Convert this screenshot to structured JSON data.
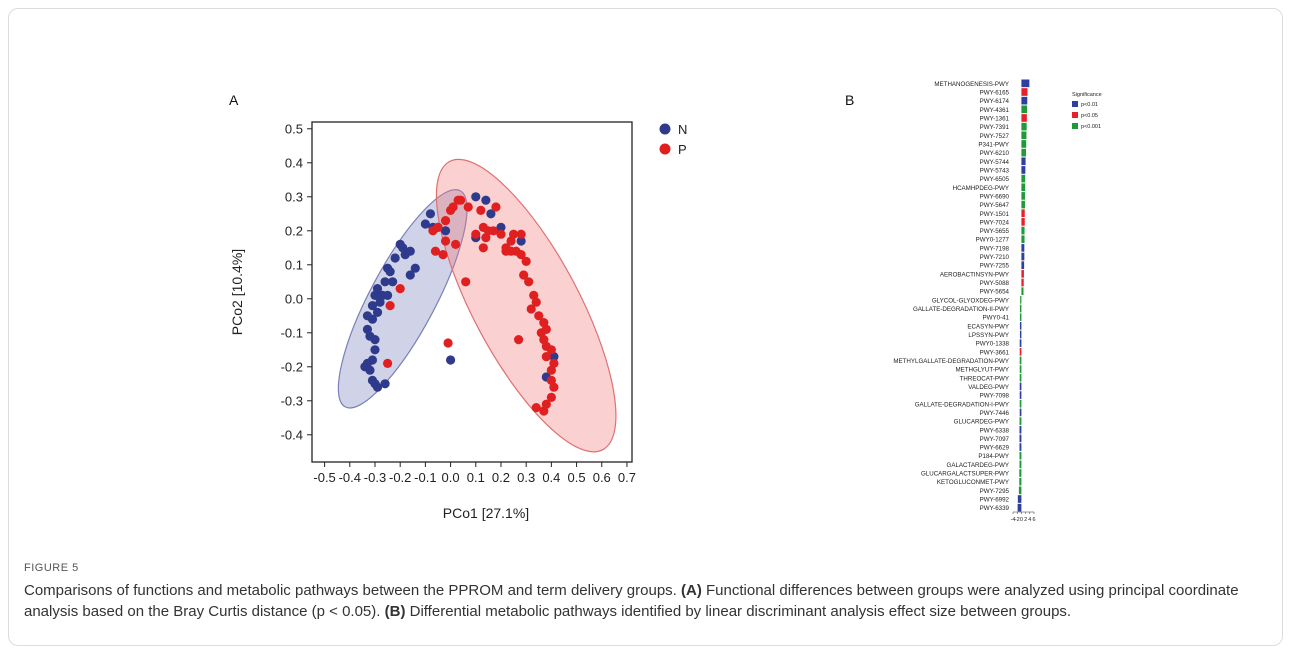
{
  "panels": {
    "a": "A",
    "b": "B"
  },
  "caption": {
    "label": "FIGURE 5",
    "sentence1": "Comparisons of functions and metabolic pathways between the PPROM and term delivery groups.",
    "a_marker": "(A)",
    "a_text": "Functional differences between groups were analyzed using principal coordinate analysis based on the Bray Curtis distance (p < 0.05).",
    "b_marker": "(B)",
    "b_text": "Differential metabolic pathways identified by linear discriminant analysis effect size between groups."
  },
  "chart_data": [
    {
      "type": "scatter",
      "title": "",
      "xlabel": "PCo1 [27.1%]",
      "ylabel": "PCo2 [10.4%]",
      "xlim": [
        -0.55,
        0.72
      ],
      "ylim": [
        -0.48,
        0.52
      ],
      "xticks": [
        -0.5,
        -0.4,
        -0.3,
        -0.2,
        -0.1,
        0.0,
        0.1,
        0.2,
        0.3,
        0.4,
        0.5,
        0.6,
        0.7
      ],
      "xtick_labels": [
        "-0.5",
        "-0.4",
        "-0.3",
        "-0.2",
        "-0.1",
        "0.0",
        "0.1",
        "0.2",
        "0.3",
        "0.4",
        "0.5",
        "0.6",
        "0.7"
      ],
      "yticks": [
        0.5,
        0.4,
        0.3,
        0.2,
        0.1,
        0.0,
        -0.1,
        -0.2,
        -0.3,
        -0.4
      ],
      "ytick_labels": [
        "0.5",
        "0.4",
        "0.3",
        "0.2",
        "0.1",
        "0.0",
        "-0.1",
        "-0.2",
        "-0.3",
        "-0.4"
      ],
      "legend_position": "top-right",
      "grid": false,
      "series": [
        {
          "name": "N",
          "color": "#2e3a8c",
          "ellipse": {
            "cx": -0.19,
            "cy": 0.0,
            "rx": 0.13,
            "ry": 0.36,
            "angle": 28,
            "fill": "rgba(120,130,185,0.35)",
            "stroke": "#7a80b8"
          },
          "points": [
            [
              -0.08,
              0.25
            ],
            [
              -0.1,
              0.22
            ],
            [
              -0.07,
              0.21
            ],
            [
              -0.05,
              0.21
            ],
            [
              -0.02,
              0.2
            ],
            [
              0.1,
              0.3
            ],
            [
              0.14,
              0.29
            ],
            [
              0.16,
              0.25
            ],
            [
              0.1,
              0.18
            ],
            [
              0.2,
              0.21
            ],
            [
              0.28,
              0.17
            ],
            [
              -0.2,
              0.16
            ],
            [
              -0.19,
              0.15
            ],
            [
              -0.18,
              0.13
            ],
            [
              -0.16,
              0.14
            ],
            [
              -0.22,
              0.12
            ],
            [
              -0.14,
              0.09
            ],
            [
              -0.16,
              0.07
            ],
            [
              -0.25,
              0.09
            ],
            [
              -0.24,
              0.08
            ],
            [
              -0.26,
              0.05
            ],
            [
              -0.23,
              0.05
            ],
            [
              -0.29,
              0.03
            ],
            [
              -0.3,
              0.01
            ],
            [
              -0.27,
              0.01
            ],
            [
              -0.25,
              0.01
            ],
            [
              -0.28,
              -0.01
            ],
            [
              -0.31,
              -0.02
            ],
            [
              -0.29,
              -0.04
            ],
            [
              -0.33,
              -0.05
            ],
            [
              -0.31,
              -0.06
            ],
            [
              -0.33,
              -0.09
            ],
            [
              -0.32,
              -0.11
            ],
            [
              -0.3,
              -0.12
            ],
            [
              -0.3,
              -0.15
            ],
            [
              -0.31,
              -0.18
            ],
            [
              -0.33,
              -0.19
            ],
            [
              -0.34,
              -0.2
            ],
            [
              -0.32,
              -0.21
            ],
            [
              -0.31,
              -0.24
            ],
            [
              -0.3,
              -0.25
            ],
            [
              -0.29,
              -0.26
            ],
            [
              -0.26,
              -0.25
            ],
            [
              0.0,
              -0.18
            ],
            [
              0.41,
              -0.17
            ],
            [
              0.38,
              -0.23
            ]
          ]
        },
        {
          "name": "P",
          "color": "#e02020",
          "ellipse": {
            "cx": 0.3,
            "cy": -0.02,
            "rx": 0.21,
            "ry": 0.48,
            "angle": -28,
            "fill": "rgba(240,120,120,0.35)",
            "stroke": "#e07070"
          },
          "points": [
            [
              0.03,
              0.29
            ],
            [
              0.04,
              0.29
            ],
            [
              0.01,
              0.27
            ],
            [
              0.0,
              0.26
            ],
            [
              0.07,
              0.27
            ],
            [
              0.12,
              0.26
            ],
            [
              0.18,
              0.27
            ],
            [
              -0.02,
              0.23
            ],
            [
              -0.05,
              0.21
            ],
            [
              -0.07,
              0.2
            ],
            [
              -0.02,
              0.17
            ],
            [
              0.02,
              0.16
            ],
            [
              -0.06,
              0.14
            ],
            [
              -0.03,
              0.13
            ],
            [
              0.13,
              0.21
            ],
            [
              0.15,
              0.2
            ],
            [
              0.17,
              0.2
            ],
            [
              0.2,
              0.19
            ],
            [
              0.24,
              0.17
            ],
            [
              0.28,
              0.19
            ],
            [
              0.25,
              0.19
            ],
            [
              0.22,
              0.15
            ],
            [
              0.26,
              0.14
            ],
            [
              0.28,
              0.13
            ],
            [
              0.3,
              0.11
            ],
            [
              0.29,
              0.07
            ],
            [
              0.24,
              0.14
            ],
            [
              0.14,
              0.18
            ],
            [
              0.1,
              0.19
            ],
            [
              0.13,
              0.15
            ],
            [
              0.22,
              0.14
            ],
            [
              0.31,
              0.05
            ],
            [
              0.33,
              0.01
            ],
            [
              0.34,
              -0.01
            ],
            [
              0.32,
              -0.03
            ],
            [
              0.35,
              -0.05
            ],
            [
              0.37,
              -0.07
            ],
            [
              0.38,
              -0.09
            ],
            [
              0.36,
              -0.1
            ],
            [
              0.37,
              -0.12
            ],
            [
              0.38,
              -0.14
            ],
            [
              0.4,
              -0.15
            ],
            [
              0.38,
              -0.17
            ],
            [
              0.41,
              -0.19
            ],
            [
              0.4,
              -0.21
            ],
            [
              0.4,
              -0.24
            ],
            [
              0.41,
              -0.26
            ],
            [
              0.4,
              -0.29
            ],
            [
              0.38,
              -0.31
            ],
            [
              0.37,
              -0.33
            ],
            [
              0.34,
              -0.32
            ],
            [
              0.27,
              -0.12
            ],
            [
              0.06,
              0.05
            ],
            [
              -0.2,
              0.03
            ],
            [
              -0.24,
              -0.02
            ],
            [
              -0.25,
              -0.19
            ],
            [
              -0.01,
              -0.13
            ]
          ]
        }
      ]
    },
    {
      "type": "bar",
      "orientation": "horizontal",
      "title": "",
      "xlabel": "",
      "ylabel": "",
      "xlim": [
        -4,
        6
      ],
      "xticks": [
        -4,
        -2,
        0,
        2,
        4,
        6
      ],
      "xtick_labels": [
        "-4",
        "-2",
        "0",
        "2",
        "4",
        "6"
      ],
      "legend_title": "Significance",
      "legend_position": "right",
      "legend": [
        {
          "label": "p<0.01",
          "color": "#2e3fa0"
        },
        {
          "label": "p<0.05",
          "color": "#e8202a"
        },
        {
          "label": "p<0.001",
          "color": "#1f9a3a"
        }
      ],
      "categories": [
        "METHANOGENESIS-PWY",
        "PWY-6165",
        "PWY-6174",
        "PWY-4361",
        "PWY-1361",
        "PWY-7391",
        "PWY-7527",
        "P341-PWY",
        "PWY-6210",
        "PWY-5744",
        "PWY-5743",
        "PWY-6505",
        "HCAMHPDEG-PWY",
        "PWY-6690",
        "PWY-5647",
        "PWY-1501",
        "PWY-7024",
        "PWY-5655",
        "PWY0-1277",
        "PWY-7198",
        "PWY-7210",
        "PWY-7255",
        "AEROBACTINSYN-PWY",
        "PWY-5088",
        "PWY-5654",
        "GLYCOL-GLYOXDEG-PWY",
        "GALLATE-DEGRADATION-II-PWY",
        "PWY0-41",
        "ECASYN-PWY",
        "LPSSYN-PWY",
        "PWY0-1338",
        "PWY-3661",
        "METHYLGALLATE-DEGRADATION-PWY",
        "METHGLYUT-PWY",
        "THREOCAT-PWY",
        "VALDEG-PWY",
        "PWY-7098",
        "GALLATE-DEGRADATION-I-PWY",
        "PWY-7446",
        "GLUCARDEG-PWY",
        "PWY-6338",
        "PWY-7097",
        "PWY-6629",
        "P184-PWY",
        "GALACTARDEG-PWY",
        "GLUCARGALACTSUPER-PWY",
        "KETOGLUCONMET-PWY",
        "PWY-7295",
        "PWY-6992",
        "PWY-6339"
      ],
      "values": [
        3.8,
        2.9,
        2.8,
        2.7,
        2.6,
        2.5,
        2.4,
        2.3,
        2.2,
        2.0,
        1.9,
        1.8,
        1.8,
        1.7,
        1.7,
        1.6,
        1.6,
        1.5,
        1.5,
        1.4,
        1.4,
        1.3,
        1.2,
        1.1,
        1.0,
        -0.6,
        -0.7,
        -0.7,
        -0.7,
        -0.7,
        -0.8,
        -0.8,
        -0.8,
        -0.8,
        -0.8,
        -0.8,
        -0.8,
        -0.8,
        -0.8,
        -0.9,
        -0.9,
        -0.9,
        -0.9,
        -0.9,
        -0.9,
        -1.0,
        -1.0,
        -1.2,
        -1.7,
        -1.8
      ],
      "significance": [
        "p<0.01",
        "p<0.05",
        "p<0.01",
        "p<0.001",
        "p<0.05",
        "p<0.001",
        "p<0.001",
        "p<0.001",
        "p<0.001",
        "p<0.01",
        "p<0.01",
        "p<0.001",
        "p<0.001",
        "p<0.001",
        "p<0.001",
        "p<0.05",
        "p<0.05",
        "p<0.001",
        "p<0.001",
        "p<0.01",
        "p<0.01",
        "p<0.01",
        "p<0.05",
        "p<0.05",
        "p<0.001",
        "p<0.001",
        "p<0.001",
        "p<0.001",
        "p<0.01",
        "p<0.01",
        "p<0.01",
        "p<0.05",
        "p<0.001",
        "p<0.001",
        "p<0.001",
        "p<0.01",
        "p<0.01",
        "p<0.001",
        "p<0.01",
        "p<0.001",
        "p<0.01",
        "p<0.01",
        "p<0.01",
        "p<0.001",
        "p<0.001",
        "p<0.001",
        "p<0.001",
        "p<0.001",
        "p<0.01",
        "p<0.01"
      ]
    }
  ]
}
